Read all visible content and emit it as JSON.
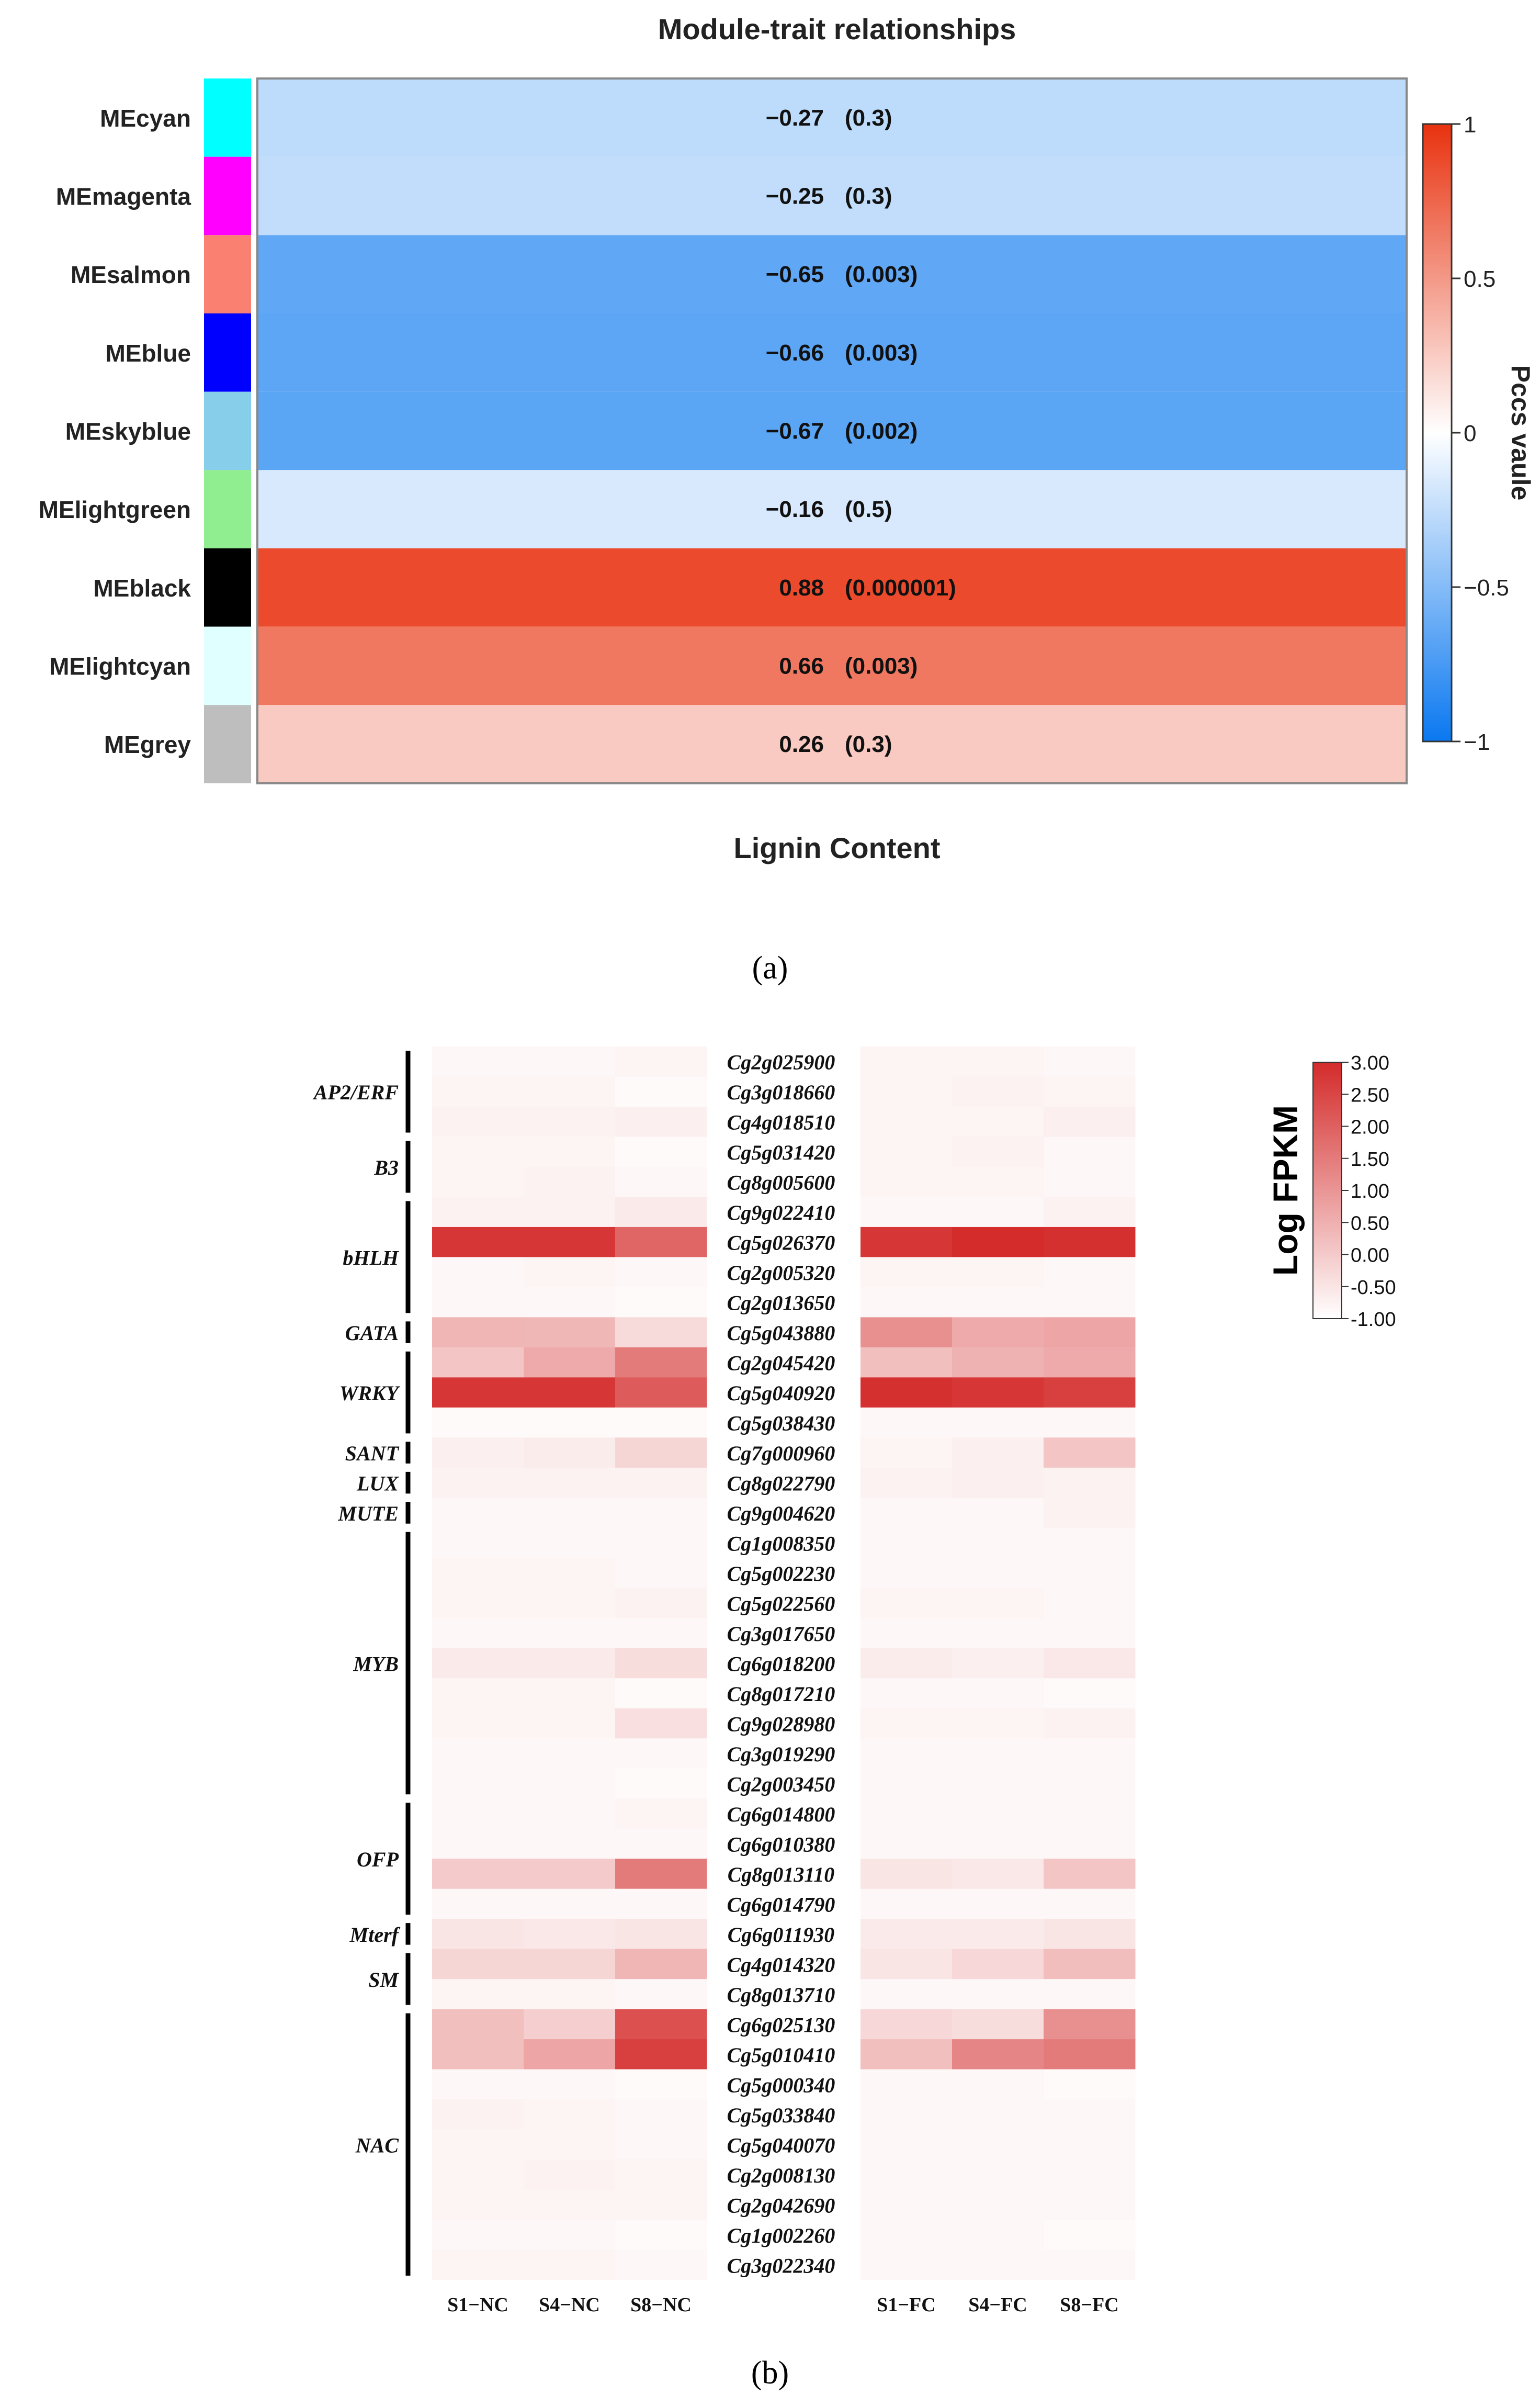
{
  "panel_a_label": "(a)",
  "panel_b_label": "(b)",
  "chart_data": [
    {
      "type": "heatmap",
      "title": "Module-trait relationships",
      "xlabel": "Lignin Content",
      "legend_title": "Pccs vaule",
      "legend_ticks": [
        1,
        0.5,
        0,
        -0.5,
        -1
      ],
      "legend_tick_labels": [
        "1",
        "0.5",
        "0",
        "−0.5",
        "−1"
      ],
      "color_range": [
        -1,
        1
      ],
      "rows": [
        {
          "module": "MEcyan",
          "color": "#00ffff",
          "r": -0.27,
          "p": 0.3,
          "r_label": "−0.27",
          "p_label": "(0.3)"
        },
        {
          "module": "MEmagenta",
          "color": "#ff00ff",
          "r": -0.25,
          "p": 0.3,
          "r_label": "−0.25",
          "p_label": "(0.3)"
        },
        {
          "module": "MEsalmon",
          "color": "#fa8072",
          "r": -0.65,
          "p": 0.003,
          "r_label": "−0.65",
          "p_label": "(0.003)"
        },
        {
          "module": "MEblue",
          "color": "#0000ff",
          "r": -0.66,
          "p": 0.003,
          "r_label": "−0.66",
          "p_label": "(0.003)"
        },
        {
          "module": "MEskyblue",
          "color": "#87ceeb",
          "r": -0.67,
          "p": 0.002,
          "r_label": "−0.67",
          "p_label": "(0.002)"
        },
        {
          "module": "MElightgreen",
          "color": "#90ee90",
          "r": -0.16,
          "p": 0.5,
          "r_label": "−0.16",
          "p_label": "(0.5)"
        },
        {
          "module": "MEblack",
          "color": "#000000",
          "r": 0.88,
          "p": 1e-06,
          "r_label": "0.88",
          "p_label": "(0.000001)"
        },
        {
          "module": "MElightcyan",
          "color": "#e0ffff",
          "r": 0.66,
          "p": 0.003,
          "r_label": "0.66",
          "p_label": "(0.003)"
        },
        {
          "module": "MEgrey",
          "color": "#bebebe",
          "r": 0.26,
          "p": 0.3,
          "r_label": "0.26",
          "p_label": "(0.3)"
        }
      ]
    },
    {
      "type": "heatmap",
      "legend_title": "Log FPKM",
      "legend_range": [
        -1,
        3
      ],
      "legend_tick_labels": [
        "3.00",
        "2.50",
        "2.00",
        "1.50",
        "1.00",
        "0.50",
        "0.00",
        "-0.50",
        "-1.00"
      ],
      "nc_columns": [
        "S1−NC",
        "S4−NC",
        "S8−NC"
      ],
      "fc_columns": [
        "S1−FC",
        "S4−FC",
        "S8−FC"
      ],
      "genes": [
        "Cg2g025900",
        "Cg3g018660",
        "Cg4g018510",
        "Cg5g031420",
        "Cg8g005600",
        "Cg9g022410",
        "Cg5g026370",
        "Cg2g005320",
        "Cg2g013650",
        "Cg5g043880",
        "Cg2g045420",
        "Cg5g040920",
        "Cg5g038430",
        "Cg7g000960",
        "Cg8g022790",
        "Cg9g004620",
        "Cg1g008350",
        "Cg5g002230",
        "Cg5g022560",
        "Cg3g017650",
        "Cg6g018200",
        "Cg8g017210",
        "Cg9g028980",
        "Cg3g019290",
        "Cg2g003450",
        "Cg6g014800",
        "Cg6g010380",
        "Cg8g013110",
        "Cg6g014790",
        "Cg6g011930",
        "Cg4g014320",
        "Cg8g013710",
        "Cg6g025130",
        "Cg5g010410",
        "Cg5g000340",
        "Cg5g033840",
        "Cg5g040070",
        "Cg2g008130",
        "Cg2g042690",
        "Cg1g002260",
        "Cg3g022340"
      ],
      "nc_values": [
        [
          -0.85,
          -0.85,
          -0.8
        ],
        [
          -0.8,
          -0.8,
          -0.9
        ],
        [
          -0.75,
          -0.75,
          -0.7
        ],
        [
          -0.8,
          -0.8,
          -0.9
        ],
        [
          -0.8,
          -0.75,
          -0.85
        ],
        [
          -0.75,
          -0.75,
          -0.6
        ],
        [
          2.8,
          2.8,
          1.9
        ],
        [
          -0.85,
          -0.8,
          -0.85
        ],
        [
          -0.85,
          -0.85,
          -0.9
        ],
        [
          0.4,
          0.35,
          -0.3
        ],
        [
          0.1,
          0.6,
          1.5
        ],
        [
          2.8,
          2.8,
          2.1
        ],
        [
          -0.9,
          -0.9,
          -0.9
        ],
        [
          -0.7,
          -0.65,
          -0.2
        ],
        [
          -0.75,
          -0.75,
          -0.75
        ],
        [
          -0.85,
          -0.85,
          -0.85
        ],
        [
          -0.85,
          -0.85,
          -0.85
        ],
        [
          -0.8,
          -0.8,
          -0.85
        ],
        [
          -0.8,
          -0.8,
          -0.75
        ],
        [
          -0.85,
          -0.85,
          -0.85
        ],
        [
          -0.6,
          -0.6,
          -0.35
        ],
        [
          -0.8,
          -0.8,
          -0.9
        ],
        [
          -0.8,
          -0.8,
          -0.4
        ],
        [
          -0.85,
          -0.85,
          -0.85
        ],
        [
          -0.85,
          -0.85,
          -0.9
        ],
        [
          -0.85,
          -0.85,
          -0.8
        ],
        [
          -0.85,
          -0.85,
          -0.85
        ],
        [
          0.0,
          0.0,
          1.5
        ],
        [
          -0.85,
          -0.85,
          -0.85
        ],
        [
          -0.5,
          -0.55,
          -0.5
        ],
        [
          -0.2,
          -0.2,
          0.4
        ],
        [
          -0.8,
          -0.8,
          -0.85
        ],
        [
          0.2,
          -0.1,
          2.3
        ],
        [
          0.2,
          0.7,
          2.6
        ],
        [
          -0.85,
          -0.85,
          -0.9
        ],
        [
          -0.75,
          -0.8,
          -0.85
        ],
        [
          -0.8,
          -0.8,
          -0.85
        ],
        [
          -0.8,
          -0.75,
          -0.8
        ],
        [
          -0.8,
          -0.8,
          -0.8
        ],
        [
          -0.85,
          -0.85,
          -0.9
        ],
        [
          -0.8,
          -0.8,
          -0.85
        ]
      ],
      "fc_values": [
        [
          -0.8,
          -0.8,
          -0.85
        ],
        [
          -0.8,
          -0.75,
          -0.8
        ],
        [
          -0.8,
          -0.8,
          -0.7
        ],
        [
          -0.8,
          -0.75,
          -0.85
        ],
        [
          -0.8,
          -0.8,
          -0.85
        ],
        [
          -0.85,
          -0.85,
          -0.75
        ],
        [
          2.8,
          3.0,
          2.9
        ],
        [
          -0.8,
          -0.8,
          -0.85
        ],
        [
          -0.85,
          -0.85,
          -0.85
        ],
        [
          1.1,
          0.6,
          0.7
        ],
        [
          0.2,
          0.45,
          0.6
        ],
        [
          2.9,
          2.8,
          2.6
        ],
        [
          -0.85,
          -0.85,
          -0.85
        ],
        [
          -0.8,
          -0.7,
          0.1
        ],
        [
          -0.75,
          -0.7,
          -0.75
        ],
        [
          -0.85,
          -0.85,
          -0.75
        ],
        [
          -0.85,
          -0.85,
          -0.85
        ],
        [
          -0.85,
          -0.85,
          -0.85
        ],
        [
          -0.8,
          -0.8,
          -0.85
        ],
        [
          -0.85,
          -0.85,
          -0.85
        ],
        [
          -0.65,
          -0.7,
          -0.55
        ],
        [
          -0.85,
          -0.85,
          -0.9
        ],
        [
          -0.8,
          -0.8,
          -0.75
        ],
        [
          -0.85,
          -0.85,
          -0.85
        ],
        [
          -0.85,
          -0.85,
          -0.85
        ],
        [
          -0.85,
          -0.85,
          -0.85
        ],
        [
          -0.85,
          -0.85,
          -0.85
        ],
        [
          -0.5,
          -0.55,
          0.1
        ],
        [
          -0.85,
          -0.85,
          -0.85
        ],
        [
          -0.6,
          -0.6,
          -0.5
        ],
        [
          -0.5,
          -0.25,
          0.25
        ],
        [
          -0.85,
          -0.85,
          -0.85
        ],
        [
          -0.25,
          -0.35,
          1.1
        ],
        [
          0.2,
          1.3,
          1.5
        ],
        [
          -0.85,
          -0.85,
          -0.9
        ],
        [
          -0.85,
          -0.85,
          -0.85
        ],
        [
          -0.85,
          -0.85,
          -0.85
        ],
        [
          -0.85,
          -0.85,
          -0.85
        ],
        [
          -0.85,
          -0.85,
          -0.85
        ],
        [
          -0.85,
          -0.85,
          -0.9
        ],
        [
          -0.85,
          -0.85,
          -0.85
        ]
      ],
      "families": [
        {
          "name": "AP2/ERF",
          "start": 0,
          "end": 2
        },
        {
          "name": "B3",
          "start": 3,
          "end": 4
        },
        {
          "name": "bHLH",
          "start": 5,
          "end": 8
        },
        {
          "name": "GATA",
          "start": 9,
          "end": 9
        },
        {
          "name": "WRKY",
          "start": 10,
          "end": 12
        },
        {
          "name": "SANT",
          "start": 13,
          "end": 13
        },
        {
          "name": "LUX",
          "start": 14,
          "end": 14
        },
        {
          "name": "MUTE",
          "start": 15,
          "end": 15
        },
        {
          "name": "MYB",
          "start": 16,
          "end": 24
        },
        {
          "name": "OFP",
          "start": 25,
          "end": 28
        },
        {
          "name": "Mterf",
          "start": 29,
          "end": 29
        },
        {
          "name": "SM",
          "start": 30,
          "end": 31
        },
        {
          "name": "NAC",
          "start": 32,
          "end": 40
        }
      ]
    }
  ]
}
